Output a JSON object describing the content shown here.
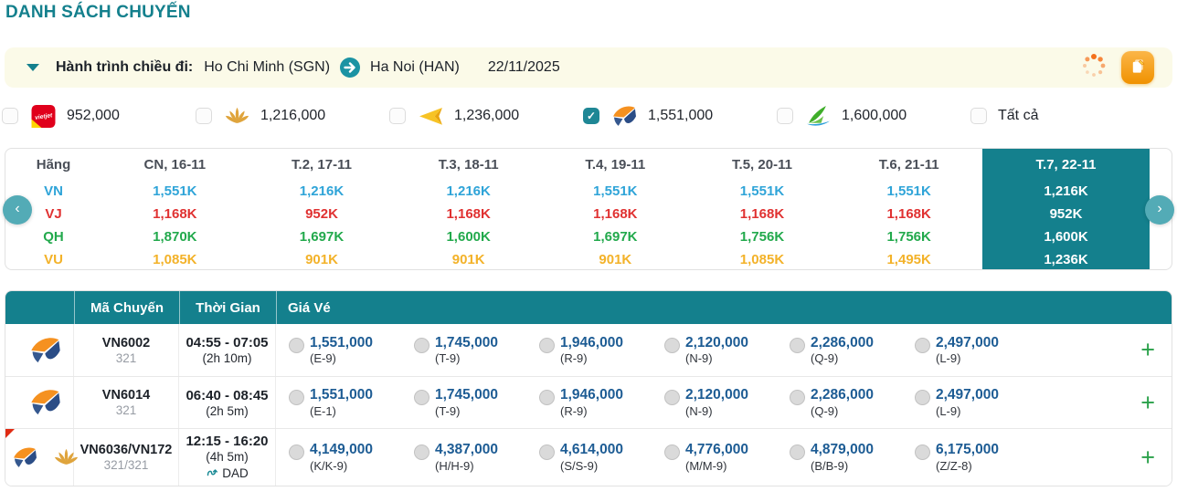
{
  "colors": {
    "teal": "#14808d",
    "teal-light": "#53abb6",
    "accent-orange": "#f09200",
    "price-blue": "#1d5c94",
    "plus-green": "#2aa14a",
    "journey-bg": "#fbfae8",
    "flag-red": "#e02b13"
  },
  "page": {
    "title": "DANH SÁCH CHUYẾN"
  },
  "journey": {
    "label": "Hành trình chiều đi:",
    "from": "Ho Chi Minh (SGN)",
    "to": "Ha Noi (HAN)",
    "date": "22/11/2025"
  },
  "icons": {
    "collapse": "caret-down-icon",
    "route": "arrow-right-circle-icon",
    "loading": "loading-spinner-icon",
    "export": "ticket-copy-icon",
    "transit": "connection-icon"
  },
  "check_glyph": "✓",
  "filters": [
    {
      "id": "vietjet",
      "logo_icon": "vietjet-logo",
      "label": "952,000",
      "checked": false
    },
    {
      "id": "golden-lotus",
      "logo_icon": "golden-lotus-logo",
      "label": "1,216,000",
      "checked": false
    },
    {
      "id": "yellow-plane",
      "logo_icon": "yellow-plane-logo",
      "label": "1,236,000",
      "checked": false
    },
    {
      "id": "orange-bird",
      "logo_icon": "orange-blue-bird-logo",
      "label": "1,551,000",
      "checked": true
    },
    {
      "id": "green-sail",
      "logo_icon": "green-sail-logo",
      "label": "1,600,000",
      "checked": false
    },
    {
      "id": "all",
      "logo_icon": null,
      "label": "Tất cả",
      "checked": false
    }
  ],
  "matrix": {
    "prev_label": "‹",
    "next_label": "›",
    "selected_col": 7,
    "header": [
      "Hãng",
      "CN, 16-11",
      "T.2, 17-11",
      "T.3, 18-11",
      "T.4, 19-11",
      "T.5, 20-11",
      "T.6, 21-11",
      "T.7, 22-11"
    ],
    "rows": [
      {
        "code": "VN",
        "color": "#2fa4d8",
        "values": [
          "1,551K",
          "1,216K",
          "1,216K",
          "1,551K",
          "1,551K",
          "1,551K",
          "1,216K"
        ]
      },
      {
        "code": "VJ",
        "color": "#e03131",
        "values": [
          "1,168K",
          "952K",
          "1,168K",
          "1,168K",
          "1,168K",
          "1,168K",
          "952K"
        ]
      },
      {
        "code": "QH",
        "color": "#22a94c",
        "values": [
          "1,870K",
          "1,697K",
          "1,600K",
          "1,697K",
          "1,756K",
          "1,756K",
          "1,600K"
        ]
      },
      {
        "code": "VU",
        "color": "#f3b229",
        "values": [
          "1,085K",
          "901K",
          "901K",
          "901K",
          "1,085K",
          "1,495K",
          "1,236K"
        ]
      }
    ]
  },
  "flights": {
    "columns": [
      "Mã Chuyến",
      "Thời Gian",
      "Giá Vé"
    ],
    "add_label": "+",
    "rows": [
      {
        "logos": [
          "orange-blue-bird-logo"
        ],
        "code": "VN6002",
        "aircraft": "321",
        "time": "04:55 - 07:05",
        "duration": "(2h 10m)",
        "transit": null,
        "flagged": false,
        "fares": [
          {
            "price": "1,551,000",
            "class": "(E-9)"
          },
          {
            "price": "1,745,000",
            "class": "(T-9)"
          },
          {
            "price": "1,946,000",
            "class": "(R-9)"
          },
          {
            "price": "2,120,000",
            "class": "(N-9)"
          },
          {
            "price": "2,286,000",
            "class": "(Q-9)"
          },
          {
            "price": "2,497,000",
            "class": "(L-9)"
          }
        ]
      },
      {
        "logos": [
          "orange-blue-bird-logo"
        ],
        "code": "VN6014",
        "aircraft": "321",
        "time": "06:40 - 08:45",
        "duration": "(2h 5m)",
        "transit": null,
        "flagged": false,
        "fares": [
          {
            "price": "1,551,000",
            "class": "(E-1)"
          },
          {
            "price": "1,745,000",
            "class": "(T-9)"
          },
          {
            "price": "1,946,000",
            "class": "(R-9)"
          },
          {
            "price": "2,120,000",
            "class": "(N-9)"
          },
          {
            "price": "2,286,000",
            "class": "(Q-9)"
          },
          {
            "price": "2,497,000",
            "class": "(L-9)"
          }
        ]
      },
      {
        "logos": [
          "orange-blue-bird-logo",
          "golden-lotus-logo"
        ],
        "code": "VN6036/VN172",
        "aircraft": "321/321",
        "time": "12:15 - 16:20",
        "duration": "(4h 5m)",
        "transit": "DAD",
        "flagged": true,
        "fares": [
          {
            "price": "4,149,000",
            "class": "(K/K-9)"
          },
          {
            "price": "4,387,000",
            "class": "(H/H-9)"
          },
          {
            "price": "4,614,000",
            "class": "(S/S-9)"
          },
          {
            "price": "4,776,000",
            "class": "(M/M-9)"
          },
          {
            "price": "4,879,000",
            "class": "(B/B-9)"
          },
          {
            "price": "6,175,000",
            "class": "(Z/Z-8)"
          }
        ]
      }
    ]
  }
}
